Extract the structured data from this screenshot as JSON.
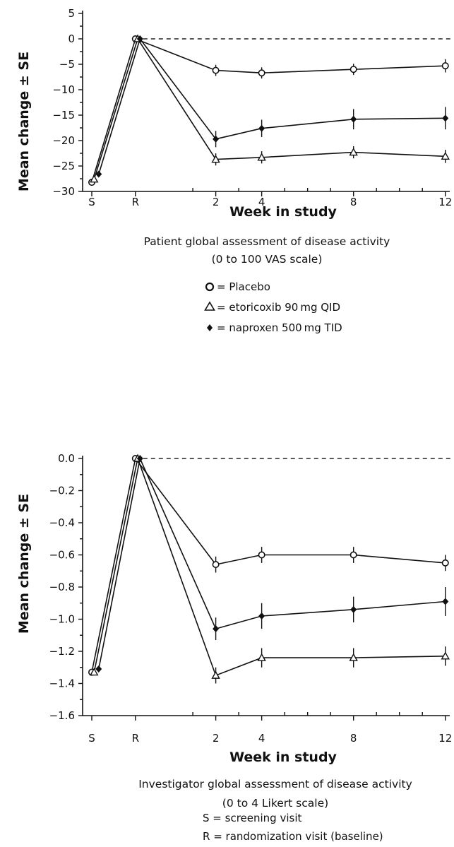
{
  "legend": {
    "placebo": "= Placebo",
    "etoricoxib": "= etoricoxib 90 mg QID",
    "naproxen": "= naproxen 500 mg TID"
  },
  "footnotes": {
    "screening": "S = screening visit",
    "randomization": "R = randomization visit (baseline)"
  },
  "chart_data": [
    {
      "type": "line",
      "ylabel": "Mean change ± SE",
      "xlabel": "Week in study",
      "caption_line1": "Patient global assessment of disease activity",
      "caption_line2": "(0 to 100 VAS scale)",
      "x_ticks": [
        {
          "label": "S",
          "x": -3.4
        },
        {
          "label": "R",
          "x": -1.5
        },
        {
          "label": "2",
          "x": 2
        },
        {
          "label": "4",
          "x": 4
        },
        {
          "label": "8",
          "x": 8
        },
        {
          "label": "12",
          "x": 12
        }
      ],
      "xlim": [
        -3.8,
        12.1
      ],
      "ylim": [
        -30,
        5
      ],
      "y_ticks": [
        5,
        0,
        -5,
        -10,
        -15,
        -20,
        -25,
        -30
      ],
      "y_decimals": 0,
      "zero_line": 0,
      "series": [
        {
          "key": "placebo",
          "marker": "circle",
          "x": [
            -3.4,
            -1.5,
            2,
            4,
            8,
            12
          ],
          "y": [
            -28.2,
            0,
            -6.2,
            -6.7,
            -6.0,
            -5.3
          ],
          "se": [
            0.5,
            0,
            1.1,
            1.1,
            1.1,
            1.3
          ]
        },
        {
          "key": "etoricoxib",
          "marker": "triangle",
          "x": [
            -3.3,
            -1.4,
            2,
            4,
            8,
            12
          ],
          "y": [
            -27.6,
            0,
            -23.7,
            -23.3,
            -22.3,
            -23.1
          ],
          "se": [
            0.5,
            0,
            1.2,
            1.2,
            1.2,
            1.3
          ]
        },
        {
          "key": "naproxen",
          "marker": "diamond",
          "x": [
            -3.1,
            -1.3,
            2,
            4,
            8,
            12
          ],
          "y": [
            -26.6,
            0,
            -19.7,
            -17.6,
            -15.8,
            -15.6
          ],
          "se": [
            0.5,
            0,
            1.6,
            1.7,
            2.0,
            2.2
          ]
        }
      ]
    },
    {
      "type": "line",
      "ylabel": "Mean change ± SE",
      "xlabel": "Week in study",
      "caption_line1": "Investigator global assessment of disease activity",
      "caption_line2": "(0 to 4 Likert scale)",
      "x_ticks": [
        {
          "label": "S",
          "x": -3.4
        },
        {
          "label": "R",
          "x": -1.5
        },
        {
          "label": "2",
          "x": 2
        },
        {
          "label": "4",
          "x": 4
        },
        {
          "label": "8",
          "x": 8
        },
        {
          "label": "12",
          "x": 12
        }
      ],
      "xlim": [
        -3.8,
        12.1
      ],
      "ylim": [
        -1.6,
        0.0
      ],
      "y_ticks": [
        0.0,
        -0.2,
        -0.4,
        -0.6,
        -0.8,
        -1.0,
        -1.2,
        -1.4,
        -1.6
      ],
      "y_decimals": 1,
      "zero_line": 0,
      "series": [
        {
          "key": "placebo",
          "marker": "circle",
          "x": [
            -3.4,
            -1.5,
            2,
            4,
            8,
            12
          ],
          "y": [
            -1.33,
            0,
            -0.66,
            -0.6,
            -0.6,
            -0.65
          ],
          "se": [
            0.02,
            0,
            0.05,
            0.05,
            0.05,
            0.05
          ]
        },
        {
          "key": "etoricoxib",
          "marker": "triangle",
          "x": [
            -3.3,
            -1.4,
            2,
            4,
            8,
            12
          ],
          "y": [
            -1.33,
            0,
            -1.35,
            -1.24,
            -1.24,
            -1.23
          ],
          "se": [
            0.02,
            0,
            0.05,
            0.06,
            0.06,
            0.06
          ]
        },
        {
          "key": "naproxen",
          "marker": "diamond",
          "x": [
            -3.1,
            -1.3,
            2,
            4,
            8,
            12
          ],
          "y": [
            -1.31,
            0,
            -1.06,
            -0.98,
            -0.94,
            -0.89
          ],
          "se": [
            0.02,
            0,
            0.07,
            0.08,
            0.08,
            0.09
          ]
        }
      ]
    }
  ]
}
